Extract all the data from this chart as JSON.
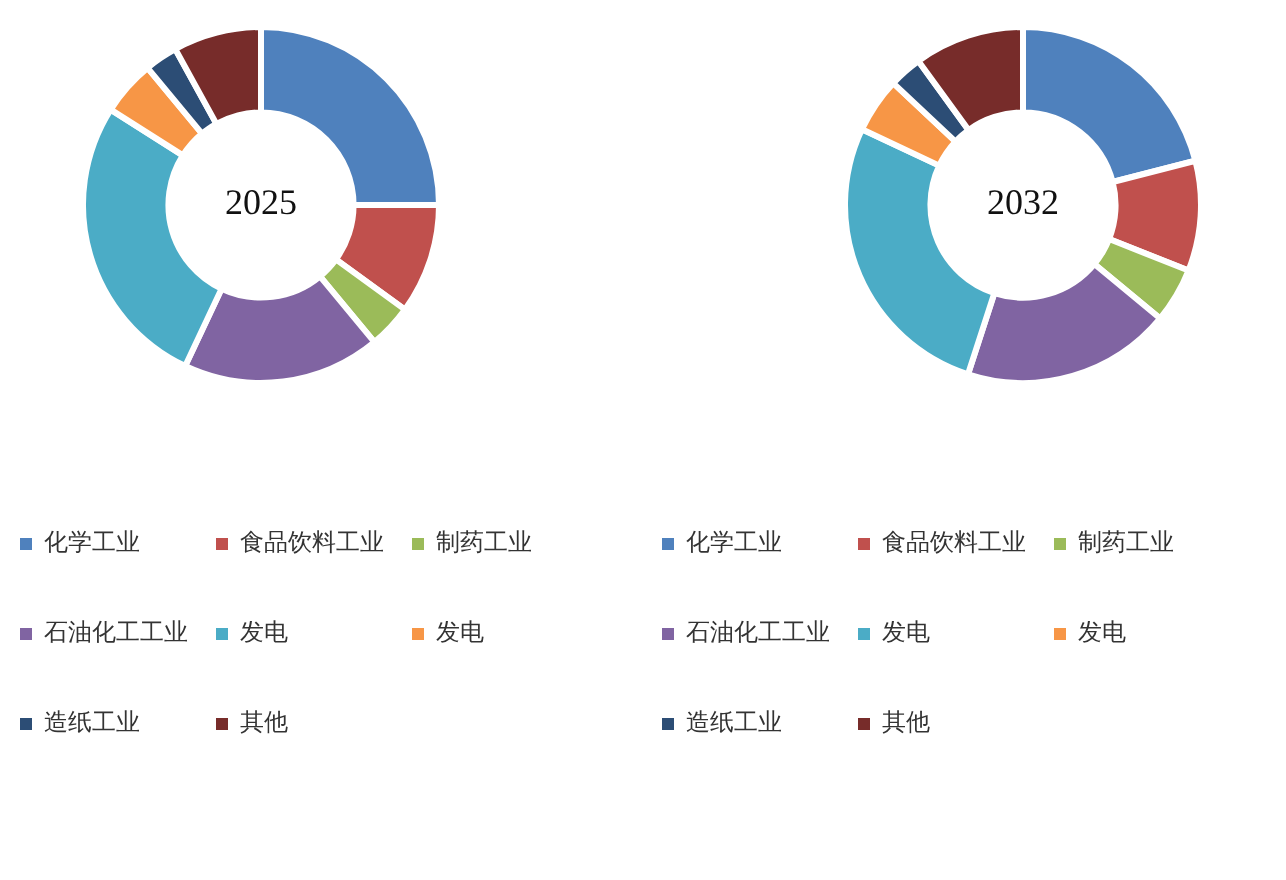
{
  "chart_data": [
    {
      "type": "donut",
      "title": "2025",
      "categories": [
        "化学工业",
        "食品饮料工业",
        "制药工业",
        "石油化工工业",
        "发电",
        "发电",
        "造纸工业",
        "其他"
      ],
      "values": [
        25,
        10,
        4,
        18,
        27,
        5,
        3,
        8
      ],
      "colors": [
        "#4f81bd",
        "#c0504d",
        "#9bbb59",
        "#8064a2",
        "#4bacc6",
        "#f79646",
        "#2c4d75",
        "#772c2a"
      ],
      "legend": "bottom"
    },
    {
      "type": "donut",
      "title": "2032",
      "categories": [
        "化学工业",
        "食品饮料工业",
        "制药工业",
        "石油化工工业",
        "发电",
        "发电",
        "造纸工业",
        "其他"
      ],
      "values": [
        21,
        10,
        5,
        19,
        27,
        5,
        3,
        10
      ],
      "colors": [
        "#4f81bd",
        "#c0504d",
        "#9bbb59",
        "#8064a2",
        "#4bacc6",
        "#f79646",
        "#2c4d75",
        "#772c2a"
      ],
      "legend": "bottom"
    }
  ]
}
